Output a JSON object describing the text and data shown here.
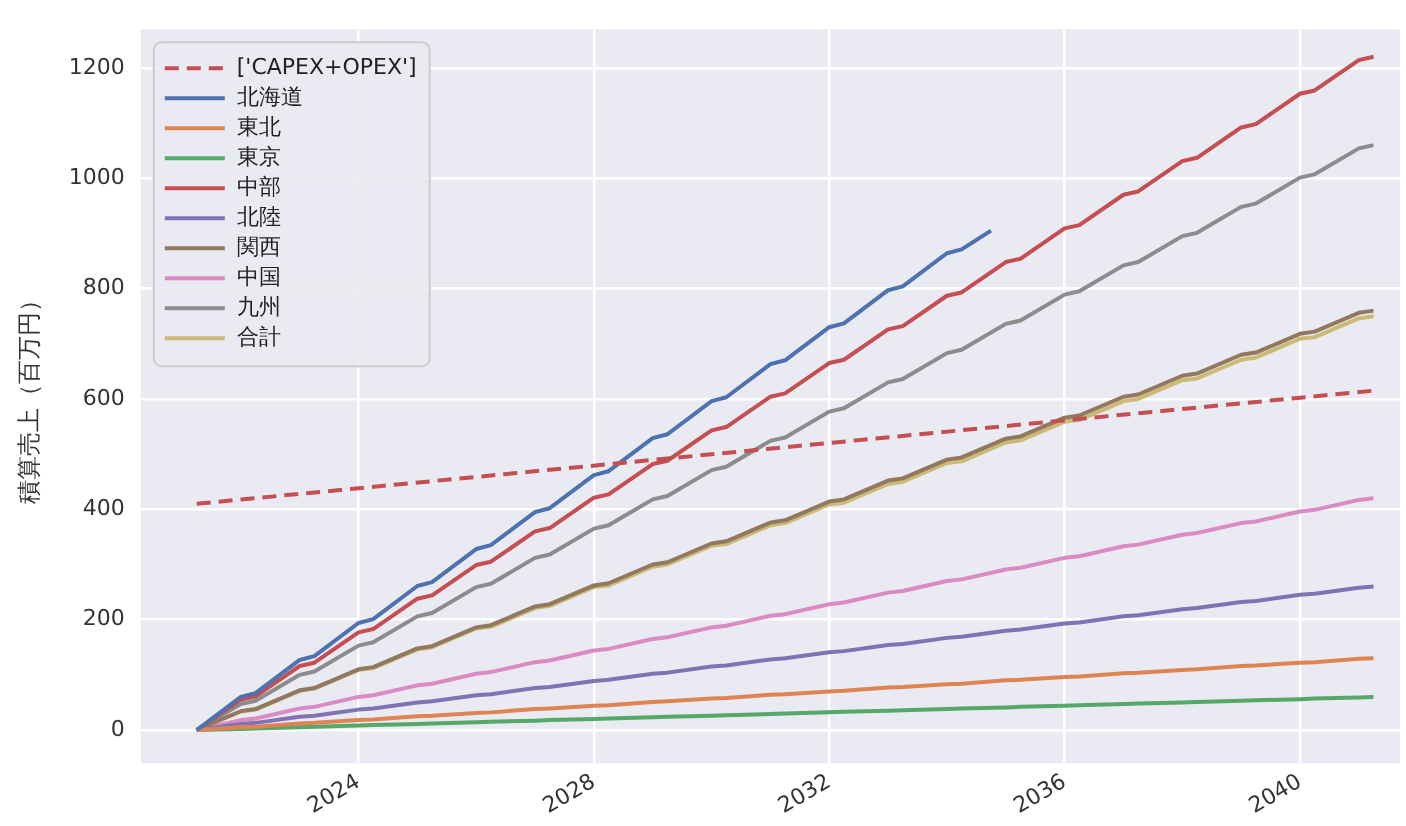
{
  "chart_data": {
    "type": "line",
    "ylabel": "積算売上（百万円）",
    "legend": "top left",
    "grid": true,
    "marker": "none",
    "xlim": [
      2020.3,
      2041.7
    ],
    "xticks": [
      2024,
      2028,
      2032,
      2036,
      2040
    ],
    "ylim": [
      -60,
      1270
    ],
    "yticks": [
      0,
      200,
      400,
      600,
      800,
      1000,
      1200
    ],
    "x": [
      2021.25,
      2022,
      2022.25,
      2023,
      2023.25,
      2024,
      2024.25,
      2025,
      2025.25,
      2026,
      2026.25,
      2027,
      2027.25,
      2028,
      2028.25,
      2029,
      2029.25,
      2030,
      2030.25,
      2031,
      2031.25,
      2032,
      2032.25,
      2033,
      2033.25,
      2034,
      2034.25,
      2035,
      2035.25,
      2036,
      2036.25,
      2037,
      2037.25,
      2038,
      2038.25,
      2039,
      2039.25,
      2040,
      2040.25,
      2041,
      2041.25
    ],
    "series": [
      {
        "name": "['CAPEX+OPEX']",
        "color": "#c44e52",
        "line_style": "dashed",
        "x": [
          2021.25,
          2041.25
        ],
        "values": [
          410,
          615
        ]
      },
      {
        "name": "北海道",
        "color": "#4c72b0",
        "x": [
          2021.25,
          2022,
          2022.25,
          2023,
          2023.25,
          2024,
          2024.25,
          2025,
          2025.25,
          2026,
          2026.25,
          2027,
          2027.25,
          2028,
          2028.25,
          2029,
          2029.25,
          2030,
          2030.25,
          2031,
          2031.25,
          2032,
          2032.25,
          2033,
          2033.25,
          2034,
          2034.25,
          2034.75
        ],
        "values": [
          0,
          60,
          67,
          127,
          134,
          194,
          201,
          261,
          268,
          328,
          335,
          395,
          402,
          462,
          469,
          529,
          536,
          596,
          603,
          663,
          670,
          730,
          737,
          797,
          804,
          864,
          871,
          905
        ]
      },
      {
        "name": "東北",
        "color": "#dd8452",
        "values": [
          0,
          5,
          6,
          12,
          13,
          18,
          19,
          25,
          26,
          31,
          32,
          38,
          39,
          44,
          45,
          51,
          52,
          57,
          58,
          64,
          65,
          70,
          71,
          77,
          78,
          83,
          84,
          90,
          91,
          96,
          97,
          103,
          104,
          109,
          110,
          116,
          117,
          122,
          123,
          129,
          130
        ]
      },
      {
        "name": "東京",
        "color": "#55a868",
        "values": [
          0,
          2,
          3,
          5,
          6,
          8,
          9,
          11,
          12,
          14,
          15,
          17,
          18,
          20,
          21,
          23,
          24,
          26,
          27,
          29,
          30,
          32,
          33,
          35,
          36,
          38,
          39,
          41,
          42,
          44,
          45,
          47,
          48,
          50,
          51,
          53,
          54,
          56,
          57,
          59,
          60
        ]
      },
      {
        "name": "中部",
        "color": "#c44e52",
        "values": [
          0,
          55,
          61,
          116,
          122,
          177,
          183,
          238,
          244,
          299,
          305,
          360,
          366,
          421,
          427,
          482,
          488,
          543,
          549,
          604,
          610,
          665,
          671,
          726,
          732,
          787,
          793,
          848,
          854,
          909,
          915,
          970,
          976,
          1031,
          1037,
          1092,
          1098,
          1153,
          1159,
          1214,
          1220
        ]
      },
      {
        "name": "北陸",
        "color": "#8172b3",
        "values": [
          0,
          11,
          13,
          24,
          26,
          37,
          39,
          50,
          52,
          63,
          65,
          76,
          78,
          89,
          91,
          102,
          104,
          115,
          117,
          128,
          130,
          141,
          143,
          154,
          156,
          167,
          169,
          180,
          182,
          193,
          195,
          206,
          208,
          219,
          221,
          232,
          234,
          245,
          247,
          258,
          260
        ]
      },
      {
        "name": "関西",
        "color": "#937860",
        "values": [
          0,
          34,
          38,
          72,
          76,
          110,
          114,
          148,
          152,
          186,
          190,
          224,
          228,
          262,
          266,
          300,
          304,
          338,
          342,
          376,
          380,
          414,
          418,
          452,
          456,
          490,
          494,
          528,
          532,
          566,
          570,
          604,
          608,
          642,
          646,
          680,
          684,
          718,
          722,
          756,
          760
        ]
      },
      {
        "name": "中国",
        "color": "#da8bc3",
        "values": [
          0,
          18,
          21,
          39,
          42,
          60,
          63,
          81,
          84,
          102,
          105,
          123,
          126,
          144,
          147,
          165,
          168,
          186,
          189,
          207,
          210,
          228,
          231,
          249,
          252,
          270,
          273,
          291,
          294,
          312,
          315,
          333,
          336,
          354,
          357,
          375,
          378,
          396,
          399,
          417,
          420
        ]
      },
      {
        "name": "九州",
        "color": "#8c8c8c",
        "values": [
          0,
          47,
          53,
          100,
          106,
          153,
          159,
          206,
          212,
          259,
          265,
          312,
          318,
          365,
          371,
          418,
          424,
          471,
          477,
          524,
          530,
          577,
          583,
          630,
          636,
          683,
          689,
          736,
          742,
          789,
          795,
          842,
          848,
          895,
          901,
          948,
          954,
          1001,
          1007,
          1054,
          1060
        ]
      },
      {
        "name": "合計",
        "color": "#ccb974",
        "values": [
          0,
          34,
          37,
          71,
          75,
          109,
          112,
          146,
          150,
          184,
          187,
          221,
          225,
          259,
          262,
          296,
          300,
          334,
          337,
          371,
          375,
          409,
          412,
          446,
          450,
          484,
          487,
          521,
          525,
          559,
          562,
          596,
          600,
          634,
          637,
          671,
          675,
          709,
          712,
          746,
          750
        ]
      }
    ]
  }
}
